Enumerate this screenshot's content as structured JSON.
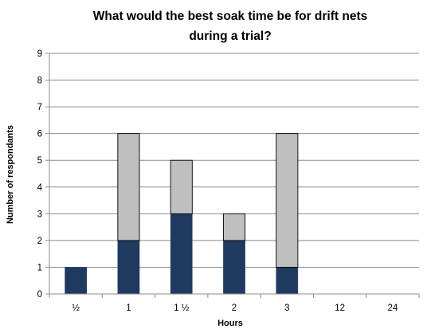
{
  "chart_data": {
    "type": "bar",
    "stacked": true,
    "title_lines": [
      "What would the best soak time be for drift nets",
      "during a trial?"
    ],
    "xlabel": "Hours",
    "ylabel": "Number of respondants",
    "categories": [
      "½",
      "1",
      "1 ½",
      "2",
      "3",
      "12",
      "24"
    ],
    "ylim": [
      0,
      9
    ],
    "yticks": [
      0,
      1,
      2,
      3,
      4,
      5,
      6,
      7,
      8,
      9
    ],
    "grid": true,
    "series": [
      {
        "values": [
          1,
          2,
          3,
          2,
          1,
          0,
          0
        ],
        "color": "#1f3a5f"
      },
      {
        "values": [
          0,
          4,
          2,
          1,
          5,
          0,
          0
        ],
        "color": "#bfbfbf"
      }
    ]
  }
}
